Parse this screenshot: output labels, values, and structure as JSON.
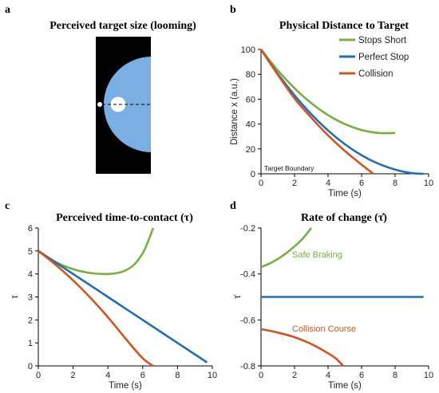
{
  "colors": {
    "green": "#77b041",
    "blue": "#1f6fb4",
    "orange": "#d35420",
    "disc": "#7baee3",
    "black": "#000000"
  },
  "chart_data": [
    {
      "panel": "a",
      "type": "other",
      "title": "Perceived target size (looming)",
      "elements": [
        "black-field",
        "large-blue-disc",
        "small-white-disc",
        "tiny-white-disc",
        "dashed-center-line"
      ]
    },
    {
      "panel": "b",
      "type": "line",
      "title": "Physical Distance to Target",
      "xlabel": "Time (s)",
      "ylabel": "Distance x (a.u.)",
      "xlim": [
        0,
        10
      ],
      "ylim": [
        0,
        100
      ],
      "xticks": [
        "0",
        "2",
        "4",
        "6",
        "8",
        "10"
      ],
      "yticks": [
        "0",
        "20",
        "40",
        "60",
        "80",
        "100"
      ],
      "annotation": "Target Boundary",
      "legend": {
        "placement": "top-right",
        "entries": [
          "Stops Short",
          "Perfect Stop",
          "Collision"
        ]
      },
      "series": [
        {
          "name": "Stops Short",
          "color": "green",
          "x": [
            0,
            1,
            2,
            3,
            4,
            5,
            6,
            7,
            8
          ],
          "y": [
            100,
            83.2,
            68.8,
            56.8,
            47.2,
            40,
            35.2,
            32.8,
            32.8
          ]
        },
        {
          "name": "Perfect Stop",
          "color": "blue",
          "x": [
            0,
            1,
            2,
            3,
            4,
            5,
            6,
            7,
            8,
            9,
            9.7
          ],
          "y": [
            100,
            80.4,
            63.1,
            47.9,
            34.8,
            23.8,
            14.9,
            8.1,
            3.4,
            0.5,
            0
          ]
        },
        {
          "name": "Collision",
          "color": "orange",
          "x": [
            0,
            1,
            2,
            3,
            4,
            5,
            6,
            6.7
          ],
          "y": [
            100,
            79.7,
            60.6,
            45.1,
            30.9,
            18.4,
            7.4,
            0
          ]
        }
      ]
    },
    {
      "panel": "c",
      "type": "line",
      "title": "Perceived time-to-contact (τ)",
      "xlabel": "Time (s)",
      "ylabel": "τ",
      "xlim": [
        0,
        10
      ],
      "ylim": [
        0,
        6
      ],
      "xticks": [
        "0",
        "2",
        "4",
        "6",
        "8",
        "10"
      ],
      "yticks": [
        "0",
        "1",
        "2",
        "3",
        "4",
        "5",
        "6"
      ],
      "series": [
        {
          "color": "green",
          "x": [
            0,
            1,
            2,
            3,
            4,
            4.6,
            5,
            5.5,
            6,
            6.3,
            6.6
          ],
          "y": [
            5,
            4.52,
            4.21,
            4.04,
            4.0,
            4.05,
            4.15,
            4.4,
            4.9,
            5.4,
            6
          ]
        },
        {
          "color": "blue",
          "x": [
            0,
            2,
            4,
            6,
            8,
            9.7
          ],
          "y": [
            5,
            4.0,
            3.0,
            2.0,
            1.0,
            0.15
          ]
        },
        {
          "color": "orange",
          "x": [
            0,
            1,
            2,
            3,
            4,
            5,
            6,
            6.6
          ],
          "y": [
            5,
            4.4,
            3.72,
            2.96,
            2.12,
            1.2,
            0.33,
            0
          ]
        }
      ]
    },
    {
      "panel": "d",
      "type": "line",
      "title": "Rate of change (τ̇)",
      "xlabel": "Time (s)",
      "ylabel": "τ̇",
      "xlim": [
        0,
        10
      ],
      "ylim": [
        -0.8,
        -0.2
      ],
      "xticks": [
        "0",
        "2",
        "4",
        "6",
        "8",
        "10"
      ],
      "yticks": [
        "-0.2",
        "-0.4",
        "-0.6",
        "-0.8"
      ],
      "annotations": [
        "Safe Braking",
        "Collision Course"
      ],
      "series": [
        {
          "color": "green",
          "x": [
            0,
            0.5,
            1,
            1.5,
            2,
            2.5,
            3
          ],
          "y": [
            -0.37,
            -0.355,
            -0.335,
            -0.31,
            -0.28,
            -0.245,
            -0.2
          ]
        },
        {
          "color": "blue",
          "x": [
            0,
            9.7
          ],
          "y": [
            -0.5,
            -0.5
          ]
        },
        {
          "color": "orange",
          "x": [
            0,
            1,
            2,
            3,
            4,
            4.5,
            4.9
          ],
          "y": [
            -0.64,
            -0.655,
            -0.675,
            -0.705,
            -0.745,
            -0.77,
            -0.8
          ]
        }
      ]
    }
  ],
  "labels": {
    "a": "a",
    "b": "b",
    "c": "c",
    "d": "d"
  }
}
